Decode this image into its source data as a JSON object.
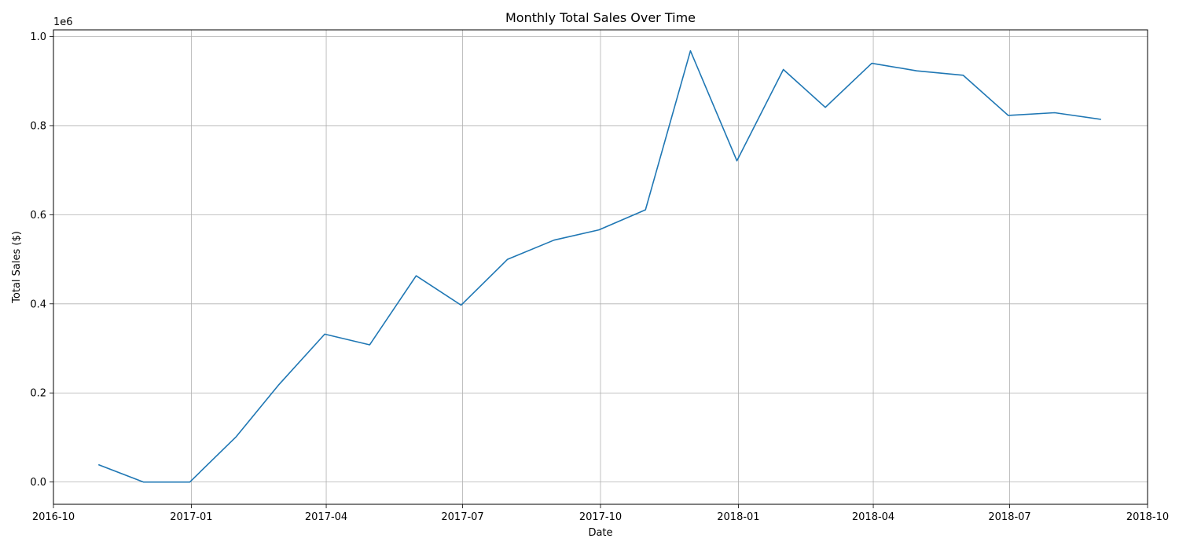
{
  "chart_data": {
    "type": "line",
    "title": "Monthly Total Sales Over Time",
    "xlabel": "Date",
    "ylabel": "Total Sales ($)",
    "y_offset_label": "1e6",
    "grid": true,
    "xlim": [
      "2016-10-01",
      "2018-10-01"
    ],
    "ylim": [
      -0.05,
      1.015
    ],
    "y_scale_factor": 1000000,
    "x_ticks": [
      "2016-10",
      "2017-01",
      "2017-04",
      "2017-07",
      "2017-10",
      "2018-01",
      "2018-04",
      "2018-07",
      "2018-10"
    ],
    "y_ticks": [
      "0.0",
      "0.2",
      "0.4",
      "0.6",
      "0.8",
      "1.0"
    ],
    "line_color": "#1f77b4",
    "series": [
      {
        "x": [
          "2016-10-31",
          "2016-11-30",
          "2016-12-31",
          "2017-01-31",
          "2017-02-28",
          "2017-03-31",
          "2017-04-30",
          "2017-05-31",
          "2017-06-30",
          "2017-07-31",
          "2017-08-31",
          "2017-09-30",
          "2017-10-31",
          "2017-11-30",
          "2017-12-31",
          "2018-01-31",
          "2018-02-28",
          "2018-03-31",
          "2018-04-30",
          "2018-05-31",
          "2018-06-30",
          "2018-07-31",
          "2018-08-31"
        ],
        "values": [
          0.039,
          0.0,
          0.0,
          0.102,
          0.217,
          0.332,
          0.308,
          0.463,
          0.397,
          0.5,
          0.543,
          0.566,
          0.611,
          0.968,
          0.721,
          0.926,
          0.841,
          0.94,
          0.923,
          0.913,
          0.823,
          0.829,
          0.814
        ]
      }
    ]
  }
}
